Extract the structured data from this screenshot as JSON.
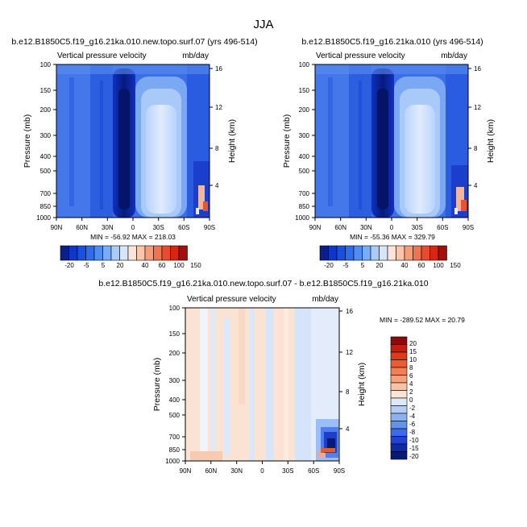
{
  "figure": {
    "title": "JJA"
  },
  "chart_data": [
    {
      "type": "heatmap",
      "title": "b.e12.B1850C5.f19_g16.21ka.010.new.topo.surf.07 (yrs 496-514)",
      "subtitle_left": "Vertical pressure velocity",
      "subtitle_right": "mb/day",
      "ylabel": "Pressure (mb)",
      "ylabel_right": "Height (km)",
      "x_ticks": [
        "90N",
        "60N",
        "30N",
        "0",
        "30S",
        "60S",
        "90S"
      ],
      "y_ticks": [
        "100",
        "150",
        "200",
        "300",
        "400",
        "500",
        "700",
        "850",
        "1000"
      ],
      "y_right_ticks": [
        "16",
        "12",
        "8",
        "4"
      ],
      "stats": "MIN = -56.92   MAX = 218.03",
      "min": -56.92,
      "max": 218.03,
      "colorbar": {
        "labels": [
          "-20",
          "-5",
          "5",
          "20",
          "40",
          "60",
          "100",
          "150"
        ],
        "colors": [
          "#0a1f8c",
          "#0f36c8",
          "#1a4fe6",
          "#2e6cf0",
          "#4f8df5",
          "#79acf7",
          "#a9cbf9",
          "#d6e6fc",
          "#fde4d6",
          "#fbc6ab",
          "#f79c78",
          "#f27350",
          "#ec4a2c",
          "#d92614",
          "#a40f0c"
        ]
      }
    },
    {
      "type": "heatmap",
      "title": "b.e12.B1850C5.f19_g16.21ka.010 (yrs 496-514)",
      "subtitle_left": "Vertical pressure velocity",
      "subtitle_right": "mb/day",
      "ylabel": "Pressure (mb)",
      "ylabel_right": "Height (km)",
      "x_ticks": [
        "90N",
        "60N",
        "30N",
        "0",
        "30S",
        "60S",
        "90S"
      ],
      "y_ticks": [
        "100",
        "150",
        "200",
        "300",
        "400",
        "500",
        "700",
        "850",
        "1000"
      ],
      "y_right_ticks": [
        "16",
        "12",
        "8",
        "4"
      ],
      "stats": "MIN = -55.36   MAX = 329.79",
      "min": -55.36,
      "max": 329.79,
      "colorbar": {
        "labels": [
          "-20",
          "-5",
          "5",
          "20",
          "40",
          "60",
          "100",
          "150"
        ],
        "colors": [
          "#0a1f8c",
          "#0f36c8",
          "#1a4fe6",
          "#2e6cf0",
          "#4f8df5",
          "#79acf7",
          "#a9cbf9",
          "#d6e6fc",
          "#fde4d6",
          "#fbc6ab",
          "#f79c78",
          "#f27350",
          "#ec4a2c",
          "#d92614",
          "#a40f0c"
        ]
      }
    },
    {
      "type": "heatmap",
      "title": "b.e12.B1850C5.f19_g16.21ka.010.new.topo.surf.07 - b.e12.B1850C5.f19_g16.21ka.010",
      "subtitle_left": "Vertical pressure velocity",
      "subtitle_right": "mb/day",
      "ylabel": "Pressure (mb)",
      "ylabel_right": "Height (km)",
      "x_ticks": [
        "90N",
        "60N",
        "30N",
        "0",
        "30S",
        "60S",
        "90S"
      ],
      "y_ticks": [
        "100",
        "150",
        "200",
        "300",
        "400",
        "500",
        "700",
        "850",
        "1000"
      ],
      "y_right_ticks": [
        "16",
        "12",
        "8",
        "4"
      ],
      "stats": "MIN = -289.52   MAX =  20.79",
      "min": -289.52,
      "max": 20.79,
      "colorbar": {
        "labels": [
          "20",
          "15",
          "10",
          "8",
          "6",
          "4",
          "2",
          "0",
          "-2",
          "-4",
          "-6",
          "-8",
          "-10",
          "-15",
          "-20"
        ],
        "colors": [
          "#8b0a0a",
          "#c0200f",
          "#de3a1c",
          "#ee5a33",
          "#f47f53",
          "#f8a079",
          "#fbc3a5",
          "#fde3d2",
          "#dbe9fb",
          "#b3cdf7",
          "#8cb1f3",
          "#6391ee",
          "#3b6be6",
          "#1f45d0",
          "#0f2aa5",
          "#081a78"
        ]
      }
    }
  ]
}
